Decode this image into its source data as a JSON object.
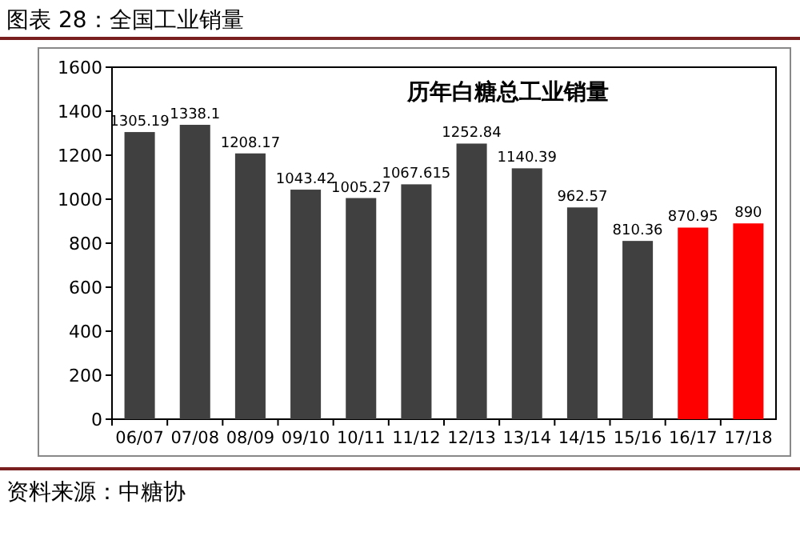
{
  "chart_data": {
    "type": "bar",
    "title": "图表 28：全国工业销量",
    "subtitle": "历年白糖总工业销量",
    "categories": [
      "06/07",
      "07/08",
      "08/09",
      "09/10",
      "10/11",
      "11/12",
      "12/13",
      "13/14",
      "14/15",
      "15/16",
      "16/17",
      "17/18"
    ],
    "values": [
      1305.19,
      1338.1,
      1208.17,
      1043.42,
      1005.27,
      1067.615,
      1252.84,
      1140.39,
      962.57,
      810.36,
      870.95,
      890
    ],
    "colors": [
      "#404040",
      "#404040",
      "#404040",
      "#404040",
      "#404040",
      "#404040",
      "#404040",
      "#404040",
      "#404040",
      "#404040",
      "#ff0000",
      "#ff0000"
    ],
    "ylim": [
      0,
      1600
    ],
    "yticks": [
      0,
      200,
      400,
      600,
      800,
      1000,
      1200,
      1400,
      1600
    ],
    "data_labels": true,
    "annotations": [
      "资料来源：中糖协"
    ]
  }
}
